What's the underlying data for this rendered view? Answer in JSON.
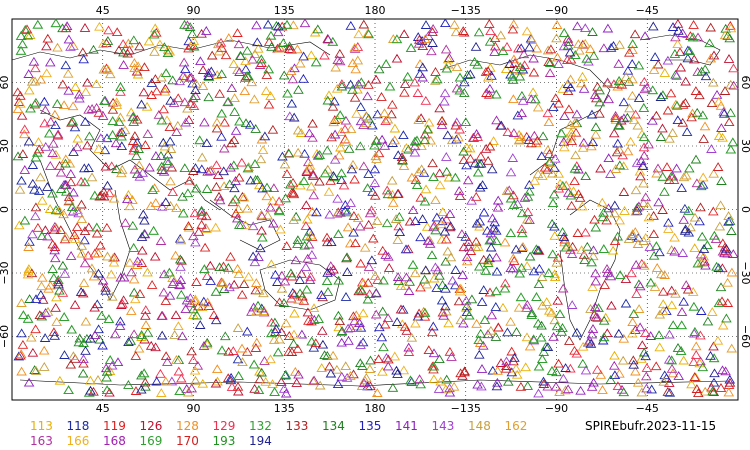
{
  "title": "SPIREbufr.2023-11-15",
  "map": {
    "lon_ticks_top": [
      "45",
      "90",
      "135",
      "180",
      "−135",
      "−90",
      "−45"
    ],
    "lon_ticks_bottom": [
      "45",
      "90",
      "135",
      "180",
      "−135",
      "−90",
      "−45"
    ],
    "lat_ticks": [
      "60",
      "30",
      "0",
      "−30",
      "−60"
    ],
    "lon_range": [
      0,
      360
    ],
    "lat_range": [
      -90,
      90
    ],
    "grid": "dotted",
    "marker": "triangle-outline"
  },
  "legend": [
    {
      "label": "113",
      "color": "#e8b000"
    },
    {
      "label": "118",
      "color": "#1a2aa8"
    },
    {
      "label": "119",
      "color": "#e02020"
    },
    {
      "label": "126",
      "color": "#c01030"
    },
    {
      "label": "128",
      "color": "#f09020"
    },
    {
      "label": "129",
      "color": "#f03050"
    },
    {
      "label": "132",
      "color": "#30a030"
    },
    {
      "label": "133",
      "color": "#b02020"
    },
    {
      "label": "134",
      "color": "#208020"
    },
    {
      "label": "135",
      "color": "#2020c0"
    },
    {
      "label": "141",
      "color": "#9020c0"
    },
    {
      "label": "143",
      "color": "#a040d0"
    },
    {
      "label": "148",
      "color": "#c8a040"
    },
    {
      "label": "162",
      "color": "#e0a030"
    },
    {
      "label": "163",
      "color": "#b030a0"
    },
    {
      "label": "166",
      "color": "#f0b020"
    },
    {
      "label": "168",
      "color": "#a020b0"
    },
    {
      "label": "169",
      "color": "#30a030"
    },
    {
      "label": "170",
      "color": "#d02020"
    },
    {
      "label": "193",
      "color": "#209020"
    },
    {
      "label": "194",
      "color": "#202090"
    }
  ]
}
